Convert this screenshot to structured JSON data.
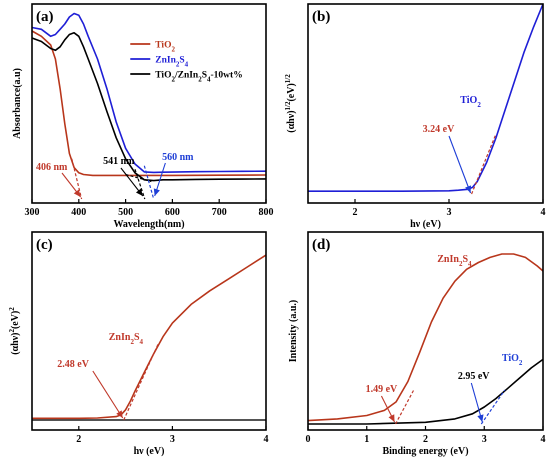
{
  "colors": {
    "tio2": "#b8361b",
    "znin2s4": "#1f1fd6",
    "composite": "#000000",
    "red_ann": "#c0392b",
    "blue_ann": "#1f3fd6",
    "baseline": "#1a1a1a"
  },
  "chart_data": [
    {
      "id": "a",
      "panel_label": "(a)",
      "type": "line",
      "xlabel": "Wavelength(nm)",
      "ylabel": "Absorbance(a.u)",
      "xlim": [
        300,
        800
      ],
      "ylim": [
        0,
        1
      ],
      "xticks": [
        300,
        400,
        500,
        600,
        700,
        800
      ],
      "series": [
        {
          "name": "TiO2",
          "color": "#b8361b",
          "x": [
            300,
            320,
            340,
            350,
            360,
            370,
            380,
            390,
            400,
            410,
            430,
            450,
            500,
            600,
            700,
            800
          ],
          "y": [
            0.88,
            0.85,
            0.8,
            0.72,
            0.55,
            0.35,
            0.18,
            0.1,
            0.07,
            0.06,
            0.055,
            0.055,
            0.055,
            0.055,
            0.056,
            0.057
          ]
        },
        {
          "name": "ZnIn2S4",
          "color": "#1f1fd6",
          "x": [
            300,
            320,
            340,
            350,
            360,
            370,
            380,
            390,
            400,
            410,
            420,
            440,
            460,
            480,
            500,
            520,
            540,
            560,
            580,
            600,
            650,
            700,
            750,
            800
          ],
          "y": [
            0.9,
            0.89,
            0.85,
            0.86,
            0.89,
            0.92,
            0.96,
            0.98,
            0.97,
            0.92,
            0.85,
            0.72,
            0.55,
            0.36,
            0.21,
            0.12,
            0.075,
            0.072,
            0.073,
            0.074,
            0.076,
            0.077,
            0.078,
            0.079
          ]
        },
        {
          "name": "TiO2/ZnIn2S4-10wt%",
          "color": "#000000",
          "x": [
            300,
            320,
            340,
            350,
            360,
            370,
            380,
            390,
            400,
            410,
            420,
            440,
            460,
            480,
            500,
            520,
            540,
            560,
            580,
            600,
            650,
            700,
            750,
            800
          ],
          "y": [
            0.84,
            0.82,
            0.78,
            0.77,
            0.79,
            0.83,
            0.86,
            0.87,
            0.85,
            0.79,
            0.72,
            0.58,
            0.42,
            0.27,
            0.15,
            0.07,
            0.03,
            0.025,
            0.03,
            0.03,
            0.032,
            0.033,
            0.034,
            0.035
          ]
        }
      ],
      "legend": [
        {
          "text": "TiO",
          "sub": "2",
          "after": "",
          "color": "#b8361b",
          "text_color": "#b8361b"
        },
        {
          "text": "ZnIn",
          "sub": "2",
          "after": "S",
          "sub2": "4",
          "color": "#1f1fd6",
          "text_color": "#1f1fd6"
        },
        {
          "text": "TiO",
          "sub": "2",
          "after": "/ZnIn",
          "sub2": "2",
          "after2": "S",
          "sub3": "4",
          "after3": "-10wt%",
          "color": "#000000",
          "text_color": "#000000"
        }
      ],
      "annotations": [
        {
          "label": "406 nm",
          "color": "#c0392b",
          "value": 406
        },
        {
          "label": "541 nm",
          "color": "#000000",
          "value": 541
        },
        {
          "label": "560 nm",
          "color": "#1f3fd6",
          "value": 560
        }
      ]
    },
    {
      "id": "b",
      "panel_label": "(b)",
      "type": "line",
      "xlabel": "hν (eV)",
      "ylabel": "(αhν)1/2(eV)1/2",
      "xlim": [
        1.5,
        4
      ],
      "ylim": [
        0,
        1
      ],
      "xticks": [
        2,
        3,
        4
      ],
      "series": [
        {
          "name": "TiO2",
          "color": "#1f1fd6",
          "x": [
            1.5,
            2.0,
            2.5,
            3.0,
            3.1,
            3.2,
            3.25,
            3.3,
            3.4,
            3.5,
            3.6,
            3.7,
            3.8,
            3.9,
            4.0
          ],
          "y": [
            0.02,
            0.02,
            0.02,
            0.022,
            0.025,
            0.03,
            0.04,
            0.07,
            0.17,
            0.3,
            0.45,
            0.6,
            0.75,
            0.88,
            1.0
          ]
        }
      ],
      "series_label": "TiO2",
      "annotations": [
        {
          "label": "3.24 eV",
          "color": "#c0392b",
          "value": 3.24
        }
      ]
    },
    {
      "id": "c",
      "panel_label": "(c)",
      "type": "line",
      "xlabel": "hν (eV)",
      "ylabel": "(αhν)2(eV)2",
      "xlim": [
        1.5,
        4
      ],
      "ylim": [
        0,
        1
      ],
      "xticks": [
        2,
        3,
        4
      ],
      "series": [
        {
          "name": "ZnIn2S4",
          "color": "#b8361b",
          "x": [
            1.5,
            2.0,
            2.2,
            2.4,
            2.45,
            2.5,
            2.55,
            2.6,
            2.7,
            2.8,
            2.9,
            3.0,
            3.2,
            3.4,
            3.6,
            3.8,
            4.0
          ],
          "y": [
            0.01,
            0.01,
            0.012,
            0.02,
            0.03,
            0.06,
            0.11,
            0.17,
            0.28,
            0.39,
            0.49,
            0.57,
            0.68,
            0.76,
            0.83,
            0.9,
            0.97
          ]
        }
      ],
      "series_label": "ZnIn2S4",
      "annotations": [
        {
          "label": "2.48 eV",
          "color": "#c0392b",
          "value": 2.48
        }
      ]
    },
    {
      "id": "d",
      "panel_label": "(d)",
      "type": "line",
      "xlabel": "Binding energy (eV)",
      "ylabel": "Intensity (a.u.)",
      "xlim": [
        0,
        4
      ],
      "ylim": [
        0,
        1
      ],
      "xticks": [
        0,
        1,
        2,
        3,
        4
      ],
      "series": [
        {
          "name": "ZnIn2S4",
          "color": "#b8361b",
          "x": [
            0,
            0.5,
            1.0,
            1.3,
            1.5,
            1.7,
            1.9,
            2.1,
            2.3,
            2.5,
            2.7,
            2.9,
            3.1,
            3.3,
            3.5,
            3.7,
            3.9,
            4.0
          ],
          "y": [
            0.02,
            0.03,
            0.05,
            0.08,
            0.13,
            0.25,
            0.42,
            0.6,
            0.74,
            0.84,
            0.91,
            0.95,
            0.98,
            1.0,
            1.0,
            0.98,
            0.93,
            0.9
          ]
        },
        {
          "name": "TiO2",
          "color": "#000000",
          "x": [
            0,
            1.0,
            2.0,
            2.5,
            2.8,
            3.0,
            3.2,
            3.4,
            3.6,
            3.8,
            4.0
          ],
          "y": [
            0.0,
            0.0,
            0.01,
            0.03,
            0.06,
            0.1,
            0.15,
            0.21,
            0.27,
            0.33,
            0.38
          ]
        }
      ],
      "annotations": [
        {
          "label": "1.49 eV",
          "color": "#c0392b",
          "value": 1.49
        },
        {
          "label": "2.95 eV",
          "color": "#1f3fd6",
          "value": 2.95
        }
      ],
      "series_labels": [
        {
          "text": "ZnIn2S4",
          "color": "#c0392b"
        },
        {
          "text": "TiO2",
          "color": "#1f3fd6"
        }
      ]
    }
  ]
}
